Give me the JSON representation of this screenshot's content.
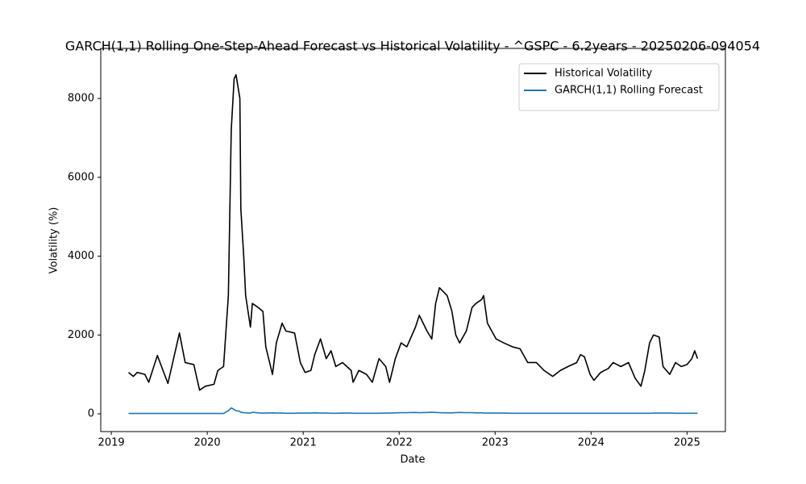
{
  "chart_data": {
    "type": "line",
    "title": "GARCH(1,1) Rolling One-Step-Ahead Forecast vs Historical Volatility - ^GSPC - 6.2years - 20250206-094054",
    "x_label": "Date",
    "y_label": "Volatility (%)",
    "x": [
      2019.18,
      2019.23,
      2019.27,
      2019.35,
      2019.39,
      2019.48,
      2019.59,
      2019.71,
      2019.77,
      2019.86,
      2019.92,
      2019.98,
      2020.07,
      2020.11,
      2020.17,
      2020.22,
      2020.25,
      2020.28,
      2020.3,
      2020.34,
      2020.35,
      2020.38,
      2020.4,
      2020.45,
      2020.47,
      2020.53,
      2020.58,
      2020.61,
      2020.68,
      2020.72,
      2020.78,
      2020.82,
      2020.91,
      2020.97,
      2021.02,
      2021.08,
      2021.12,
      2021.18,
      2021.24,
      2021.29,
      2021.34,
      2021.41,
      2021.5,
      2021.52,
      2021.58,
      2021.66,
      2021.72,
      2021.79,
      2021.86,
      2021.9,
      2021.96,
      2022.02,
      2022.08,
      2022.17,
      2022.21,
      2022.29,
      2022.34,
      2022.38,
      2022.42,
      2022.5,
      2022.55,
      2022.59,
      2022.63,
      2022.7,
      2022.76,
      2022.8,
      2022.86,
      2022.88,
      2022.92,
      2023.01,
      2023.09,
      2023.18,
      2023.26,
      2023.34,
      2023.43,
      2023.51,
      2023.6,
      2023.68,
      2023.76,
      2023.85,
      2023.89,
      2023.93,
      2023.99,
      2024.03,
      2024.1,
      2024.18,
      2024.23,
      2024.31,
      2024.39,
      2024.46,
      2024.52,
      2024.56,
      2024.61,
      2024.65,
      2024.71,
      2024.75,
      2024.82,
      2024.88,
      2024.94,
      2025.0,
      2025.05,
      2025.08,
      2025.11
    ],
    "series": [
      {
        "name": "Historical Volatility",
        "color": "#000000",
        "values": [
          1050,
          950,
          1050,
          1000,
          800,
          1480,
          770,
          2050,
          1300,
          1250,
          600,
          700,
          750,
          1100,
          1200,
          3000,
          7200,
          8500,
          8600,
          8000,
          5200,
          4000,
          3000,
          2200,
          2800,
          2700,
          2600,
          1700,
          1000,
          1800,
          2300,
          2100,
          2050,
          1300,
          1050,
          1100,
          1500,
          1900,
          1400,
          1600,
          1200,
          1300,
          1100,
          800,
          1100,
          1000,
          800,
          1400,
          1200,
          800,
          1400,
          1800,
          1700,
          2200,
          2500,
          2100,
          1900,
          2800,
          3200,
          3000,
          2600,
          2000,
          1800,
          2100,
          2700,
          2800,
          2900,
          3000,
          2300,
          1900,
          1800,
          1700,
          1650,
          1300,
          1300,
          1100,
          950,
          1100,
          1200,
          1300,
          1500,
          1450,
          1000,
          850,
          1050,
          1150,
          1300,
          1200,
          1300,
          900,
          700,
          1100,
          1800,
          2000,
          1950,
          1200,
          1000,
          1300,
          1200,
          1250,
          1400,
          1600,
          1400
        ]
      },
      {
        "name": "GARCH(1,1) Rolling Forecast",
        "color": "#1f77b4",
        "values": [
          10,
          10,
          10,
          10,
          10,
          10,
          10,
          10,
          10,
          10,
          10,
          10,
          10,
          10,
          10,
          80,
          150,
          110,
          80,
          60,
          40,
          30,
          25,
          20,
          40,
          25,
          20,
          20,
          25,
          20,
          20,
          15,
          15,
          20,
          20,
          20,
          25,
          20,
          20,
          15,
          15,
          20,
          20,
          15,
          15,
          15,
          15,
          15,
          20,
          20,
          25,
          30,
          30,
          35,
          30,
          35,
          40,
          35,
          30,
          25,
          25,
          30,
          35,
          30,
          30,
          25,
          25,
          20,
          20,
          20,
          20,
          15,
          15,
          15,
          15,
          15,
          15,
          15,
          15,
          15,
          15,
          15,
          15,
          15,
          15,
          15,
          15,
          15,
          15,
          15,
          15,
          15,
          15,
          20,
          20,
          20,
          20,
          15,
          15,
          15,
          15,
          15,
          15
        ]
      }
    ],
    "xlim": [
      2018.89,
      2025.4
    ],
    "xticks": [
      2019,
      2020,
      2021,
      2022,
      2023,
      2024,
      2025
    ],
    "ylim": [
      -450,
      9270
    ],
    "yticks": [
      0,
      2000,
      4000,
      6000,
      8000
    ],
    "legend": "upper right",
    "grid": false
  }
}
